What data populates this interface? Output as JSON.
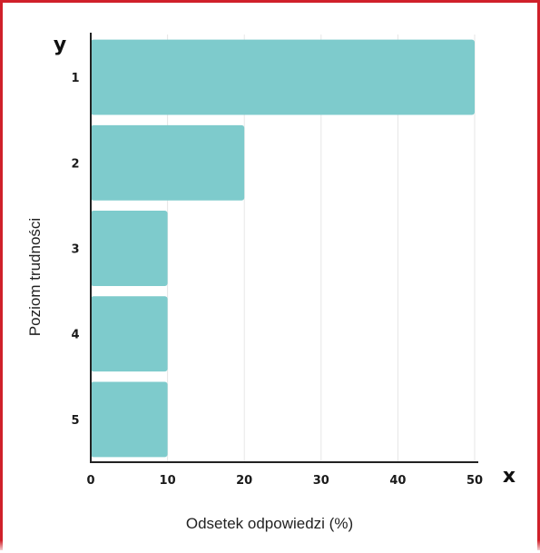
{
  "chart_data": {
    "type": "bar",
    "orientation": "horizontal",
    "categories": [
      "1",
      "2",
      "3",
      "4",
      "5"
    ],
    "values": [
      50,
      20,
      10,
      10,
      10
    ],
    "xlabel": "Odsetek odpowiedzi (%)",
    "ylabel": "Poziom trudności",
    "x_axis_letter": "x",
    "y_axis_letter": "y",
    "xticks": [
      "0",
      "10",
      "20",
      "30",
      "40",
      "50"
    ],
    "xlim": [
      0,
      50
    ],
    "grid": true,
    "bar_color": "#7ecbcc",
    "grid_color": "#e6e6e6",
    "axis_color": "#222222",
    "frame_color": "#d0202a"
  }
}
